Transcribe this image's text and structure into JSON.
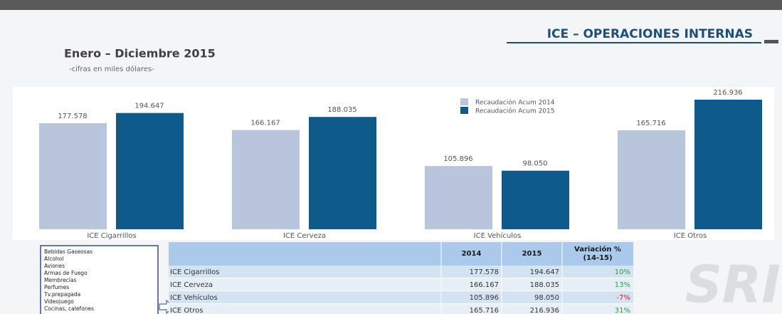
{
  "header": {
    "title": "ICE – OPERACIONES INTERNAS",
    "subtitle": "Enero – Diciembre 2015",
    "note": "-cifras en miles dólares-"
  },
  "chart_data": {
    "type": "bar",
    "categories": [
      "ICE Cigarrillos",
      "ICE Cerveza",
      "ICE Vehículos",
      "ICE Otros"
    ],
    "series": [
      {
        "name": "Recaudación Acum 2014",
        "color": "#b9c5dd",
        "values": [
          177578,
          166167,
          105896,
          165716
        ],
        "value_labels": [
          "177.578",
          "166.167",
          "105.896",
          "165.716"
        ]
      },
      {
        "name": "Recaudación Acum 2015",
        "color": "#0e5a8a",
        "values": [
          194647,
          188035,
          98050,
          216936
        ],
        "value_labels": [
          "194.647",
          "188.035",
          "98.050",
          "216.936"
        ]
      }
    ]
  },
  "list": [
    "Bebidas Gaseosas",
    "Alcohol",
    "Aviones",
    "Armas de Fuego",
    "Membrecías",
    "Perfumes",
    "Tv.prepagada",
    "Videojuego",
    "Cocinas, calefones"
  ],
  "table": {
    "header": [
      "2014",
      "2015",
      "Variación % (14-15)"
    ],
    "rows": [
      [
        "ICE Cigarrillos",
        "177.578",
        "194.647",
        "10%"
      ],
      [
        "ICE Cerveza",
        "166.167",
        "188.035",
        "13%"
      ],
      [
        "ICE Vehículos",
        "105.896",
        "98.050",
        "-7%"
      ],
      [
        "ICE Otros",
        "165.716",
        "216.936",
        "31%"
      ]
    ]
  },
  "logo": "SRI"
}
